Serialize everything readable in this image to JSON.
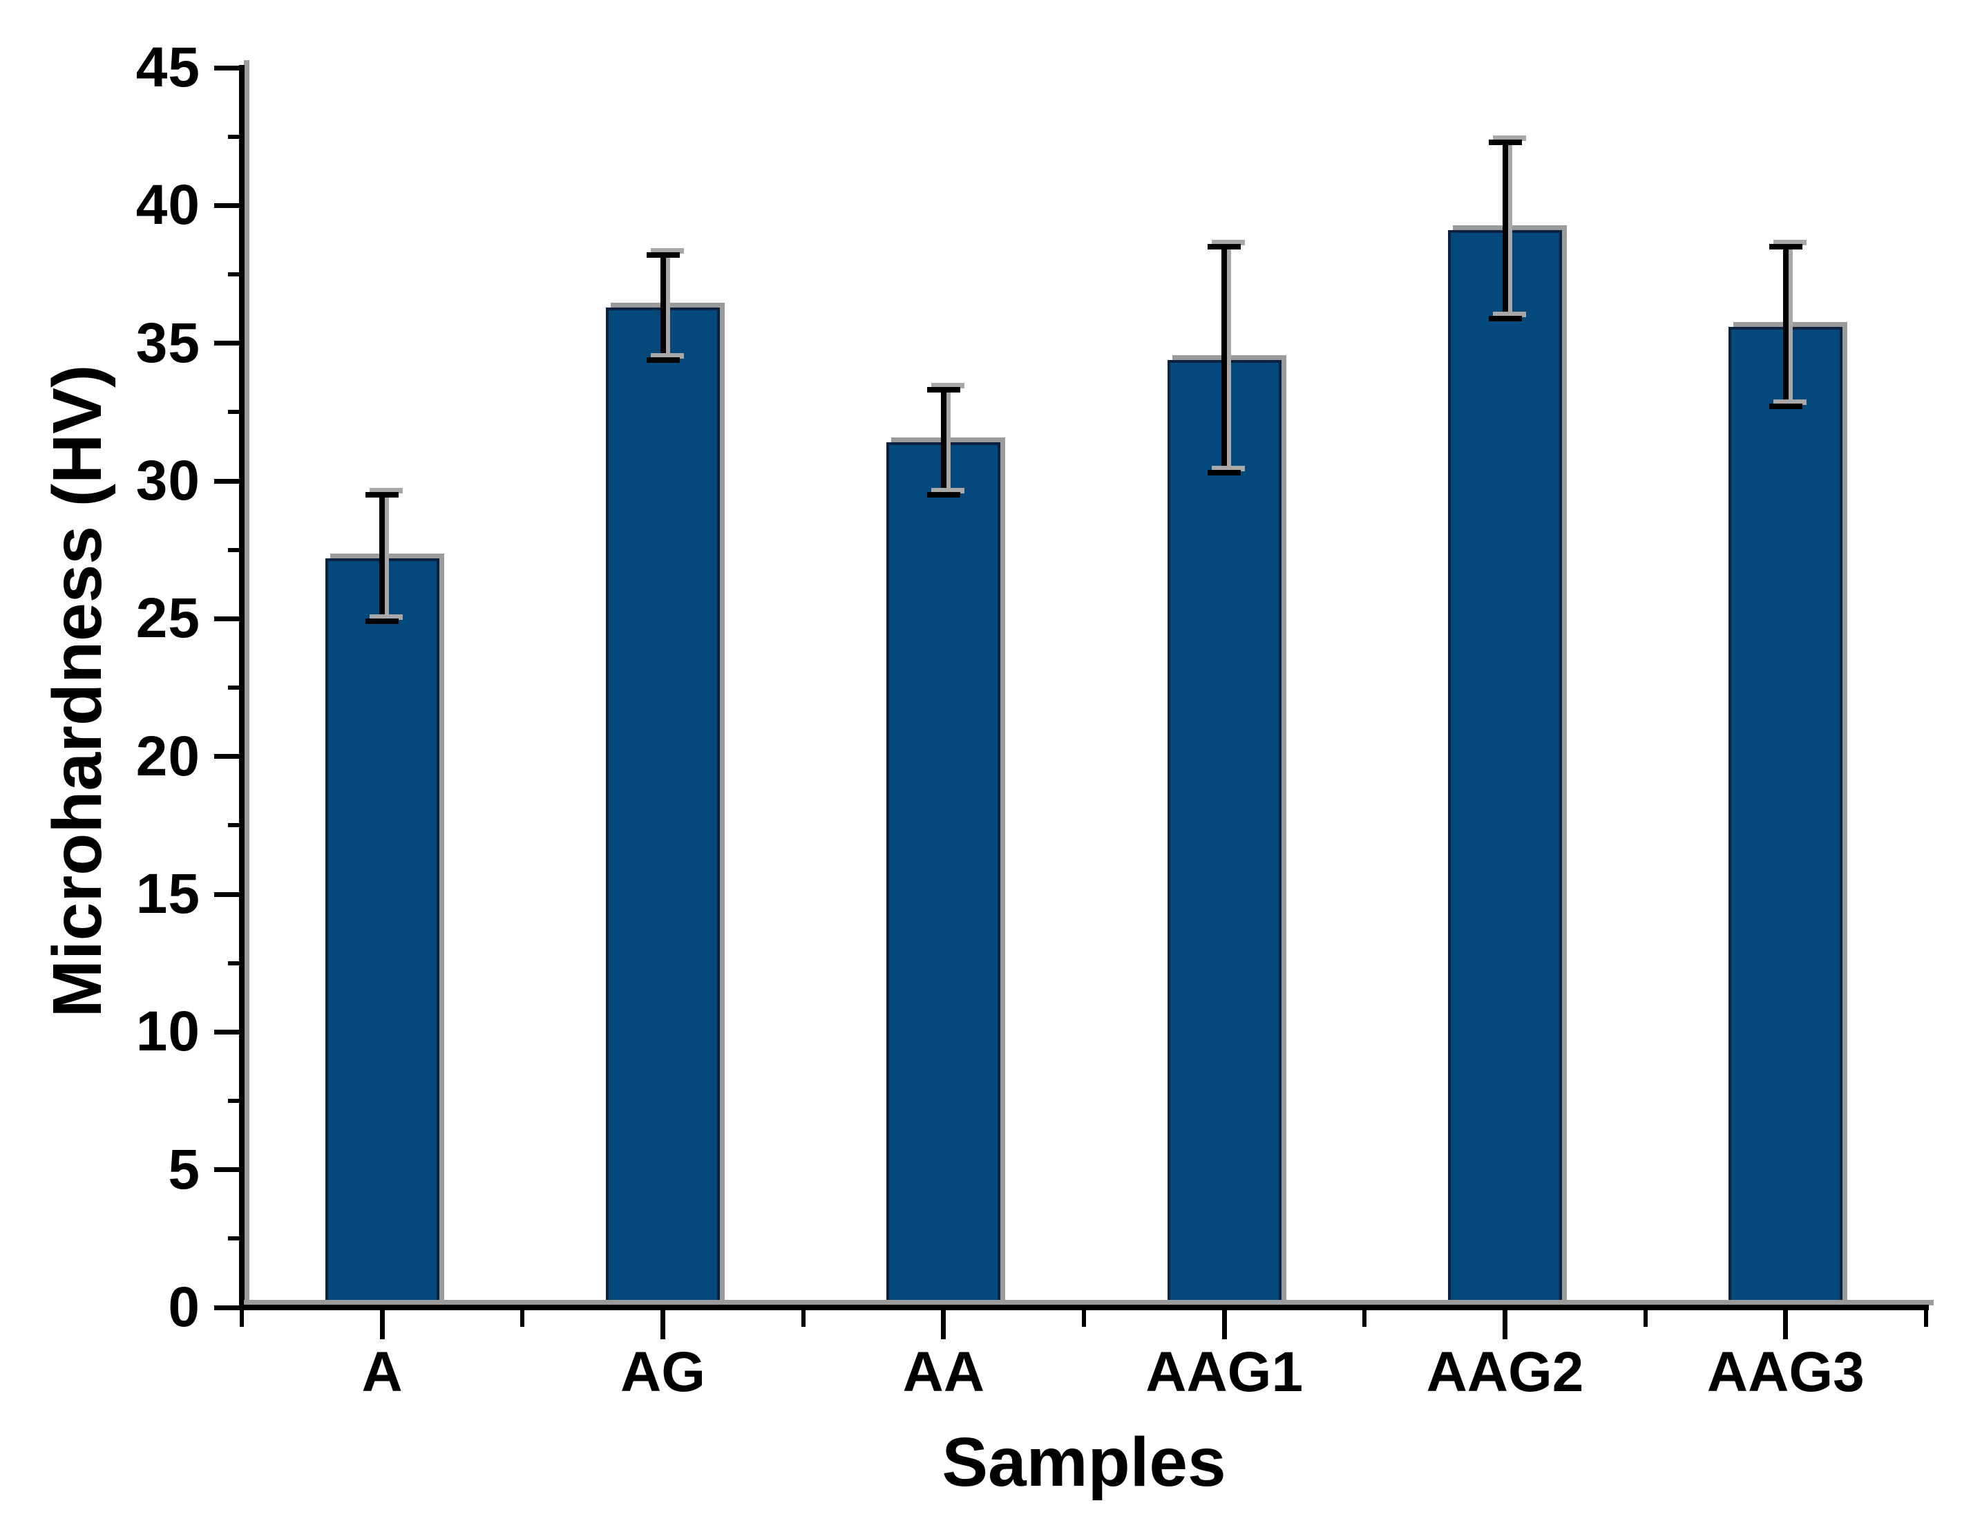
{
  "figure": {
    "background_color": "#ffffff",
    "text_color": "#000000"
  },
  "chart_data": {
    "type": "bar",
    "title": "",
    "xlabel": "Samples",
    "ylabel": "Microhardness (HV)",
    "categories": [
      "A",
      "AG",
      "AA",
      "AAG1",
      "AAG2",
      "AAG3"
    ],
    "values": [
      27.2,
      36.3,
      31.4,
      34.4,
      39.1,
      35.6
    ],
    "error_bars": [
      2.3,
      1.9,
      1.9,
      4.1,
      3.2,
      2.9
    ],
    "ylim": [
      0,
      45
    ],
    "y_major_step": 5,
    "y_minor_step": 2.5,
    "y_ticks": [
      0,
      5,
      10,
      15,
      20,
      25,
      30,
      35,
      40,
      45
    ],
    "grid": "off",
    "legend": "none",
    "bar_color": "#03497b",
    "bar_border_color": "#0a2240",
    "shadow_color": "#9b9b9b",
    "axis_color": "#000000"
  }
}
